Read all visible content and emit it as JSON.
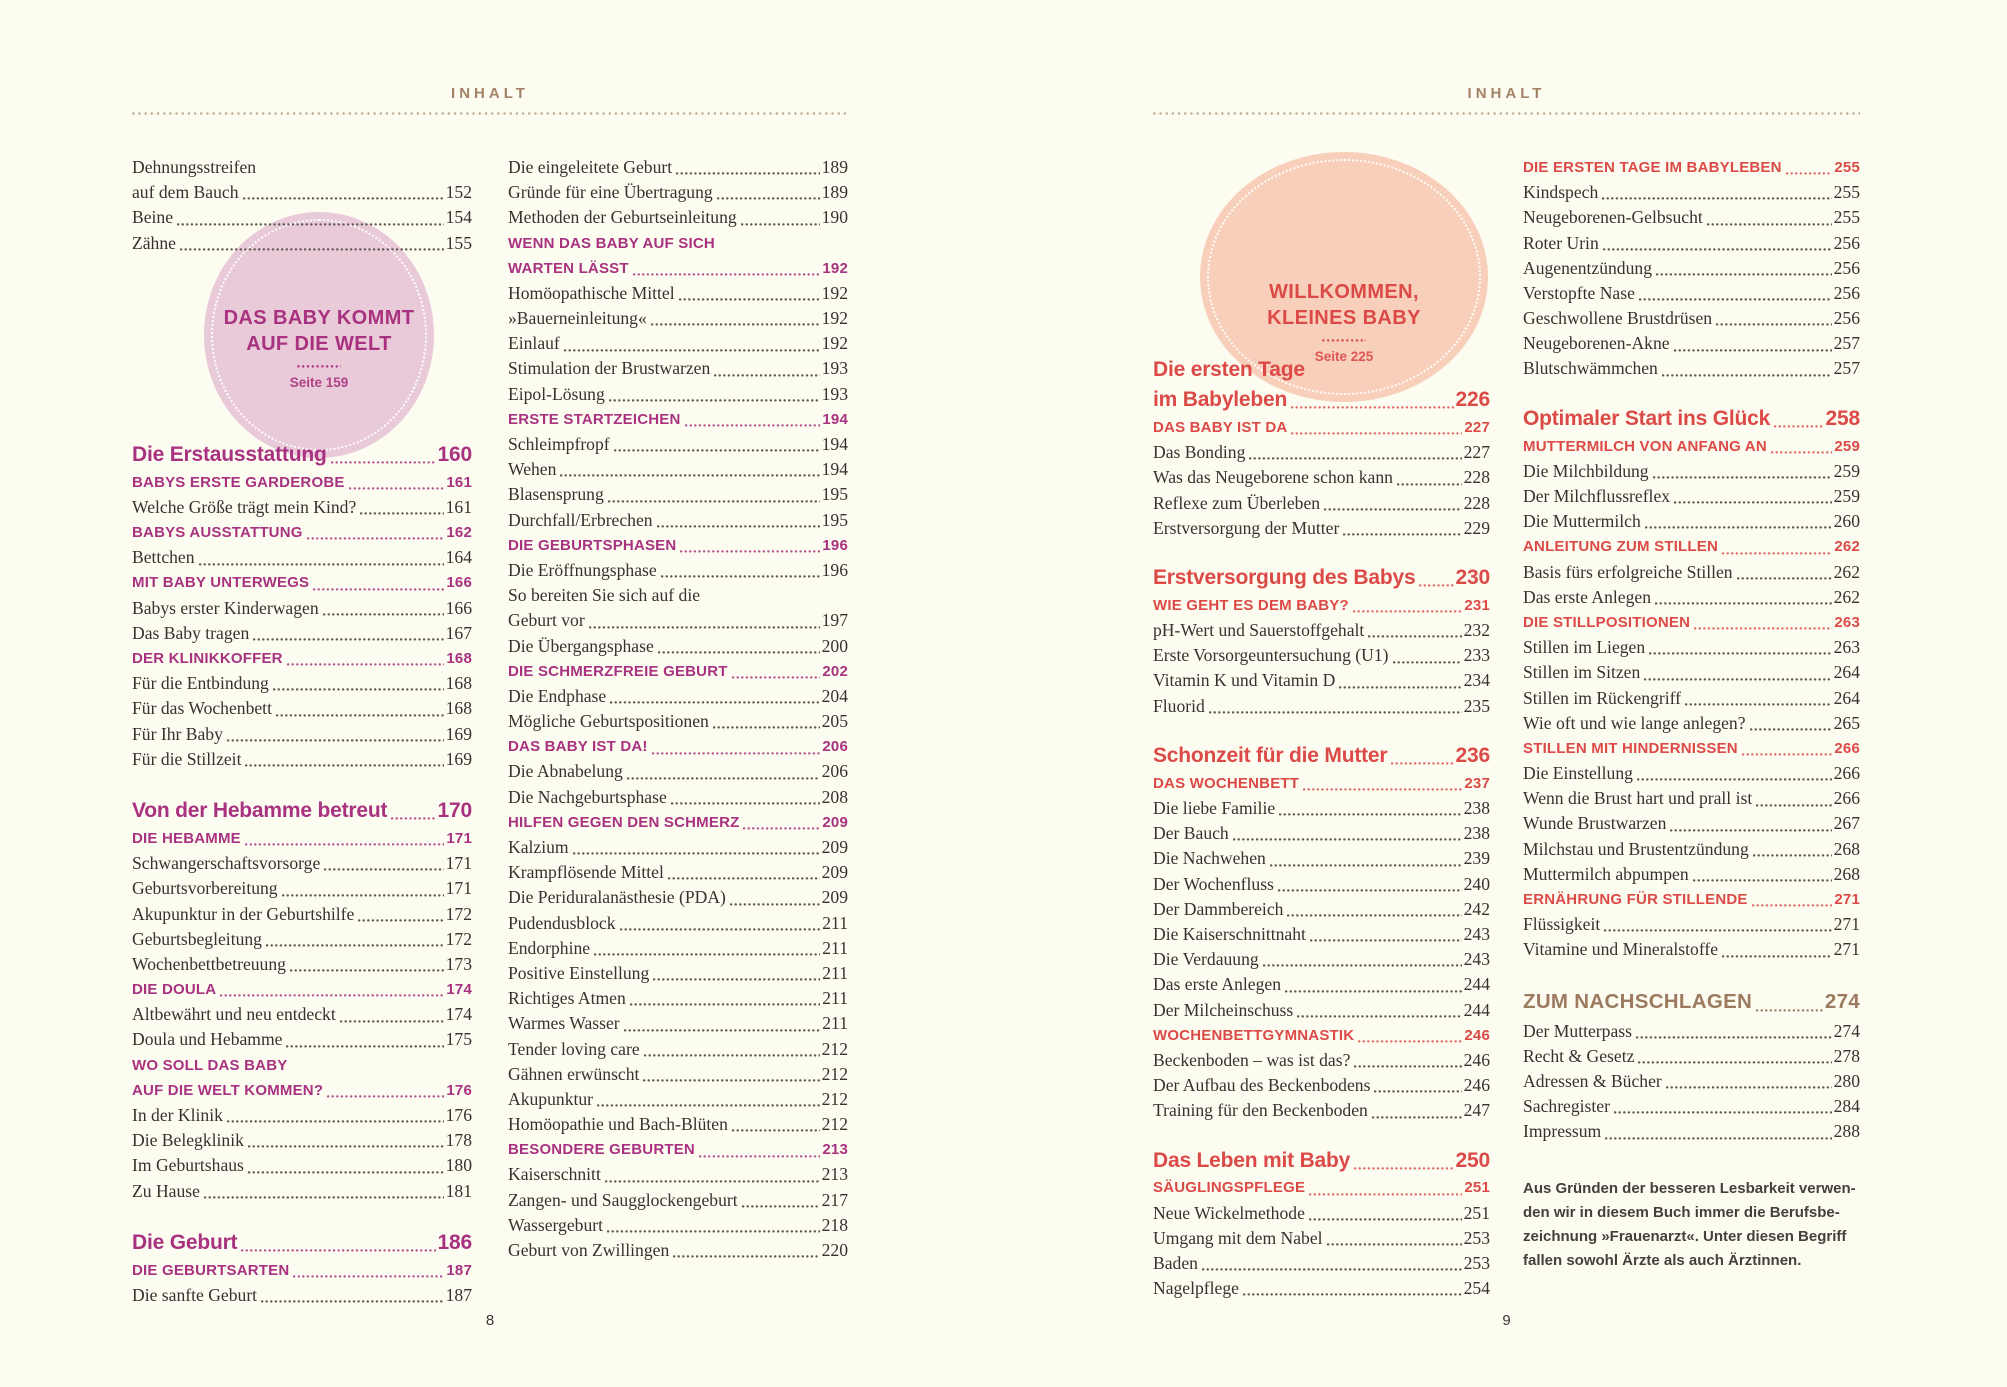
{
  "colors": {
    "background": "#fcfcf1",
    "accent_left": "#a93280",
    "accent_right": "#dc4a47",
    "accent_brown": "#9c7a5f",
    "header": "#a38267",
    "rule_dots": "#bca78a",
    "body_text": "#37322c",
    "footnote": "#46403a",
    "badge_left_bg": "#e9cad8",
    "badge_right_bg": "#f8cfba"
  },
  "left_page": {
    "header": "INHALT",
    "page_number": "8",
    "badge": {
      "line1": "DAS BABY KOMMT",
      "line2": "AUF DIE WELT",
      "seite": "Seite 159"
    },
    "col1": [
      [
        {
          "s": "item",
          "l": "Dehnungsstreifen"
        },
        {
          "s": "item",
          "l": "auf dem Bauch",
          "p": "152"
        },
        {
          "s": "item",
          "l": "Beine",
          "p": "154"
        },
        {
          "s": "item",
          "l": "Zähne",
          "p": "155"
        }
      ],
      [
        {
          "s": "chapter",
          "l": "Die Erstausstattung",
          "p": "160"
        },
        {
          "s": "section",
          "l": "BABYS ERSTE GARDEROBE",
          "p": "161"
        },
        {
          "s": "item",
          "l": "Welche Größe trägt mein Kind?",
          "p": "161"
        },
        {
          "s": "section",
          "l": "BABYS AUSSTATTUNG",
          "p": "162"
        },
        {
          "s": "item",
          "l": "Bettchen",
          "p": "164"
        },
        {
          "s": "section",
          "l": "MIT BABY UNTERWEGS",
          "p": "166"
        },
        {
          "s": "item",
          "l": "Babys erster Kinderwagen",
          "p": "166"
        },
        {
          "s": "item",
          "l": "Das Baby tragen",
          "p": "167"
        },
        {
          "s": "section",
          "l": "DER KLINIKKOFFER",
          "p": "168"
        },
        {
          "s": "item",
          "l": "Für die Entbindung",
          "p": "168"
        },
        {
          "s": "item",
          "l": "Für das Wochenbett",
          "p": "168"
        },
        {
          "s": "item",
          "l": "Für Ihr Baby",
          "p": "169"
        },
        {
          "s": "item",
          "l": "Für die Stillzeit",
          "p": "169"
        }
      ],
      [
        {
          "s": "chapter",
          "l": "Von der Hebamme betreut",
          "p": "170"
        },
        {
          "s": "section",
          "l": "DIE HEBAMME",
          "p": "171"
        },
        {
          "s": "item",
          "l": "Schwangerschaftsvorsorge",
          "p": "171"
        },
        {
          "s": "item",
          "l": "Geburtsvorbereitung",
          "p": "171"
        },
        {
          "s": "item",
          "l": "Akupunktur in der Geburtshilfe",
          "p": "172"
        },
        {
          "s": "item",
          "l": "Geburtsbegleitung",
          "p": "172"
        },
        {
          "s": "item",
          "l": "Wochenbettbetreuung",
          "p": "173"
        },
        {
          "s": "section",
          "l": "DIE DOULA",
          "p": "174"
        },
        {
          "s": "item",
          "l": "Altbewährt und neu entdeckt",
          "p": "174"
        },
        {
          "s": "item",
          "l": "Doula und Hebamme",
          "p": "175"
        },
        {
          "s": "section",
          "l": "WO SOLL DAS BABY"
        },
        {
          "s": "section",
          "l": "AUF DIE WELT KOMMEN?",
          "p": "176"
        },
        {
          "s": "item",
          "l": "In der Klinik",
          "p": "176"
        },
        {
          "s": "item",
          "l": "Die Belegklinik",
          "p": "178"
        },
        {
          "s": "item",
          "l": "Im Geburtshaus",
          "p": "180"
        },
        {
          "s": "item",
          "l": "Zu Hause",
          "p": "181"
        }
      ],
      [
        {
          "s": "chapter",
          "l": "Die Geburt",
          "p": "186"
        },
        {
          "s": "section",
          "l": "DIE GEBURTSARTEN",
          "p": "187"
        },
        {
          "s": "item",
          "l": "Die sanfte Geburt",
          "p": "187"
        }
      ]
    ],
    "col2": [
      [
        {
          "s": "item",
          "l": "Die eingeleitete Geburt",
          "p": "189"
        },
        {
          "s": "item",
          "l": "Gründe für eine Übertragung",
          "p": "189"
        },
        {
          "s": "item",
          "l": "Methoden der Geburtseinleitung",
          "p": "190"
        },
        {
          "s": "section",
          "l": "WENN DAS BABY AUF SICH"
        },
        {
          "s": "section",
          "l": "WARTEN LÄSST",
          "p": "192"
        },
        {
          "s": "item",
          "l": "Homöopathische Mittel",
          "p": "192"
        },
        {
          "s": "item",
          "l": "»Bauerneinleitung«",
          "p": "192"
        },
        {
          "s": "item",
          "l": "Einlauf",
          "p": "192"
        },
        {
          "s": "item",
          "l": "Stimulation der Brustwarzen",
          "p": "193"
        },
        {
          "s": "item",
          "l": "Eipol-Lösung",
          "p": "193"
        },
        {
          "s": "section",
          "l": "ERSTE STARTZEICHEN",
          "p": "194"
        },
        {
          "s": "item",
          "l": "Schleimpfropf",
          "p": "194"
        },
        {
          "s": "item",
          "l": "Wehen",
          "p": "194"
        },
        {
          "s": "item",
          "l": "Blasensprung",
          "p": "195"
        },
        {
          "s": "item",
          "l": "Durchfall/Erbrechen",
          "p": "195"
        },
        {
          "s": "section",
          "l": "DIE GEBURTSPHASEN",
          "p": "196"
        },
        {
          "s": "item",
          "l": "Die Eröffnungsphase",
          "p": "196"
        },
        {
          "s": "item",
          "l": "So bereiten Sie sich auf die"
        },
        {
          "s": "item",
          "l": "Geburt vor",
          "p": "197"
        },
        {
          "s": "item",
          "l": "Die Übergangsphase",
          "p": "200"
        },
        {
          "s": "section",
          "l": "DIE SCHMERZFREIE GEBURT",
          "p": "202"
        },
        {
          "s": "item",
          "l": "Die Endphase",
          "p": "204"
        },
        {
          "s": "item",
          "l": "Mögliche Geburtspositionen",
          "p": "205"
        },
        {
          "s": "section",
          "l": "DAS BABY IST DA!",
          "p": "206"
        },
        {
          "s": "item",
          "l": "Die Abnabelung",
          "p": "206"
        },
        {
          "s": "item",
          "l": "Die Nachgeburtsphase",
          "p": "208"
        },
        {
          "s": "section",
          "l": "HILFEN GEGEN DEN SCHMERZ",
          "p": "209"
        },
        {
          "s": "item",
          "l": "Kalzium",
          "p": "209"
        },
        {
          "s": "item",
          "l": "Krampflösende Mittel",
          "p": "209"
        },
        {
          "s": "item",
          "l": "Die Periduralanästhesie (PDA)",
          "p": "209"
        },
        {
          "s": "item",
          "l": "Pudendusblock",
          "p": "211"
        },
        {
          "s": "item",
          "l": "Endorphine",
          "p": "211"
        },
        {
          "s": "item",
          "l": "Positive Einstellung",
          "p": "211"
        },
        {
          "s": "item",
          "l": "Richtiges Atmen",
          "p": "211"
        },
        {
          "s": "item",
          "l": "Warmes Wasser",
          "p": "211"
        },
        {
          "s": "item",
          "l": "Tender loving care",
          "p": "212"
        },
        {
          "s": "item",
          "l": "Gähnen erwünscht",
          "p": "212"
        },
        {
          "s": "item",
          "l": "Akupunktur",
          "p": "212"
        },
        {
          "s": "item",
          "l": "Homöopathie und Bach-Blüten",
          "p": "212"
        },
        {
          "s": "section",
          "l": "BESONDERE GEBURTEN",
          "p": "213"
        },
        {
          "s": "item",
          "l": "Kaiserschnitt",
          "p": "213"
        },
        {
          "s": "item",
          "l": "Zangen- und Saugglockengeburt",
          "p": "217"
        },
        {
          "s": "item",
          "l": "Wassergeburt",
          "p": "218"
        },
        {
          "s": "item",
          "l": "Geburt von Zwillingen",
          "p": "220"
        }
      ]
    ]
  },
  "right_page": {
    "header": "INHALT",
    "page_number": "9",
    "badge": {
      "line1": "WILLKOMMEN,",
      "line2": "KLEINES BABY",
      "seite": "Seite 225"
    },
    "col1": [
      [
        {
          "s": "chapter",
          "l": "Die ersten Tage"
        },
        {
          "s": "chapter",
          "l": "im Babyleben",
          "p": "226"
        },
        {
          "s": "section",
          "l": "DAS BABY IST DA",
          "p": "227"
        },
        {
          "s": "item",
          "l": "Das Bonding",
          "p": "227"
        },
        {
          "s": "item",
          "l": "Was das Neugeborene schon kann",
          "p": "228"
        },
        {
          "s": "item",
          "l": "Reflexe zum Überleben",
          "p": "228"
        },
        {
          "s": "item",
          "l": "Erstversorgung der Mutter",
          "p": "229"
        }
      ],
      [
        {
          "s": "chapter",
          "l": "Erstversorgung des Babys",
          "p": "230"
        },
        {
          "s": "section",
          "l": "WIE GEHT ES DEM BABY?",
          "p": "231"
        },
        {
          "s": "item",
          "l": "pH-Wert und Sauerstoffgehalt",
          "p": "232"
        },
        {
          "s": "item",
          "l": "Erste Vorsorgeuntersuchung (U1)",
          "p": "233"
        },
        {
          "s": "item",
          "l": "Vitamin K und Vitamin D",
          "p": "234"
        },
        {
          "s": "item",
          "l": "Fluorid",
          "p": "235"
        }
      ],
      [
        {
          "s": "chapter",
          "l": "Schonzeit für die Mutter",
          "p": "236"
        },
        {
          "s": "section",
          "l": "DAS WOCHENBETT",
          "p": "237"
        },
        {
          "s": "item",
          "l": "Die liebe Familie",
          "p": "238"
        },
        {
          "s": "item",
          "l": "Der Bauch",
          "p": "238"
        },
        {
          "s": "item",
          "l": "Die Nachwehen",
          "p": "239"
        },
        {
          "s": "item",
          "l": "Der Wochenfluss",
          "p": "240"
        },
        {
          "s": "item",
          "l": "Der Dammbereich",
          "p": "242"
        },
        {
          "s": "item",
          "l": "Die Kaiserschnittnaht",
          "p": "243"
        },
        {
          "s": "item",
          "l": "Die Verdauung",
          "p": "243"
        },
        {
          "s": "item",
          "l": "Das erste Anlegen",
          "p": "244"
        },
        {
          "s": "item",
          "l": "Der Milcheinschuss",
          "p": "244"
        },
        {
          "s": "section",
          "l": "WOCHENBETTGYMNASTIK",
          "p": "246"
        },
        {
          "s": "item",
          "l": "Beckenboden – was ist das?",
          "p": "246"
        },
        {
          "s": "item",
          "l": "Der Aufbau des Beckenbodens",
          "p": "246"
        },
        {
          "s": "item",
          "l": "Training für den Beckenboden",
          "p": "247"
        }
      ],
      [
        {
          "s": "chapter",
          "l": "Das Leben mit Baby",
          "p": "250"
        },
        {
          "s": "section",
          "l": "SÄUGLINGSPFLEGE",
          "p": "251"
        },
        {
          "s": "item",
          "l": "Neue Wickelmethode",
          "p": "251"
        },
        {
          "s": "item",
          "l": "Umgang mit dem Nabel",
          "p": "253"
        },
        {
          "s": "item",
          "l": "Baden",
          "p": "253"
        },
        {
          "s": "item",
          "l": "Nagelpflege",
          "p": "254"
        }
      ]
    ],
    "col2": [
      [
        {
          "s": "section",
          "l": "DIE ERSTEN TAGE IM BABYLEBEN",
          "p": "255"
        },
        {
          "s": "item",
          "l": "Kindspech",
          "p": "255"
        },
        {
          "s": "item",
          "l": "Neugeborenen-Gelbsucht",
          "p": "255"
        },
        {
          "s": "item",
          "l": "Roter Urin",
          "p": "256"
        },
        {
          "s": "item",
          "l": "Augenentzündung",
          "p": "256"
        },
        {
          "s": "item",
          "l": "Verstopfte Nase",
          "p": "256"
        },
        {
          "s": "item",
          "l": "Geschwollene Brustdrüsen",
          "p": "256"
        },
        {
          "s": "item",
          "l": "Neugeborenen-Akne",
          "p": "257"
        },
        {
          "s": "item",
          "l": "Blutschwämmchen",
          "p": "257"
        }
      ],
      [
        {
          "s": "chapter",
          "l": "Optimaler Start ins Glück",
          "p": "258"
        },
        {
          "s": "section",
          "l": "MUTTERMILCH VON ANFANG AN",
          "p": "259"
        },
        {
          "s": "item",
          "l": "Die Milchbildung",
          "p": "259"
        },
        {
          "s": "item",
          "l": "Der Milchflussreflex",
          "p": "259"
        },
        {
          "s": "item",
          "l": "Die Muttermilch",
          "p": "260"
        },
        {
          "s": "section",
          "l": "ANLEITUNG ZUM STILLEN",
          "p": "262"
        },
        {
          "s": "item",
          "l": "Basis fürs erfolgreiche Stillen",
          "p": "262"
        },
        {
          "s": "item",
          "l": "Das erste Anlegen",
          "p": "262"
        },
        {
          "s": "section",
          "l": "DIE STILLPOSITIONEN",
          "p": "263"
        },
        {
          "s": "item",
          "l": "Stillen im Liegen",
          "p": "263"
        },
        {
          "s": "item",
          "l": "Stillen im Sitzen",
          "p": "264"
        },
        {
          "s": "item",
          "l": "Stillen im Rückengriff",
          "p": "264"
        },
        {
          "s": "item",
          "l": "Wie oft und wie lange anlegen?",
          "p": "265"
        },
        {
          "s": "section",
          "l": "STILLEN MIT HINDERNISSEN",
          "p": "266"
        },
        {
          "s": "item",
          "l": "Die Einstellung",
          "p": "266"
        },
        {
          "s": "item",
          "l": "Wenn die Brust hart und prall ist",
          "p": "266"
        },
        {
          "s": "item",
          "l": "Wunde Brustwarzen",
          "p": "267"
        },
        {
          "s": "item",
          "l": "Milchstau und Brustentzündung",
          "p": "268"
        },
        {
          "s": "item",
          "l": "Muttermilch abpumpen",
          "p": "268"
        },
        {
          "s": "section",
          "l": "ERNÄHRUNG FÜR STILLENDE",
          "p": "271"
        },
        {
          "s": "item",
          "l": "Flüssigkeit",
          "p": "271"
        },
        {
          "s": "item",
          "l": "Vitamine und Mineralstoffe",
          "p": "271"
        }
      ],
      [
        {
          "s": "chapterBrown",
          "l": "ZUM NACHSCHLAGEN",
          "p": "274"
        },
        {
          "s": "item",
          "l": "Der Mutterpass",
          "p": "274"
        },
        {
          "s": "item",
          "l": "Recht & Gesetz",
          "p": "278"
        },
        {
          "s": "item",
          "l": "Adressen & Bücher",
          "p": "280"
        },
        {
          "s": "item",
          "l": "Sachregister",
          "p": "284"
        },
        {
          "s": "item",
          "l": "Impressum",
          "p": "288"
        }
      ]
    ],
    "footnote": "Aus Gründen der besseren Lesbarkeit verwen-\nden wir in diesem Buch immer die Berufsbe-\nzeichnung »Frauenarzt«. Unter diesen Begriff\nfallen sowohl Ärzte als auch Ärztinnen."
  }
}
